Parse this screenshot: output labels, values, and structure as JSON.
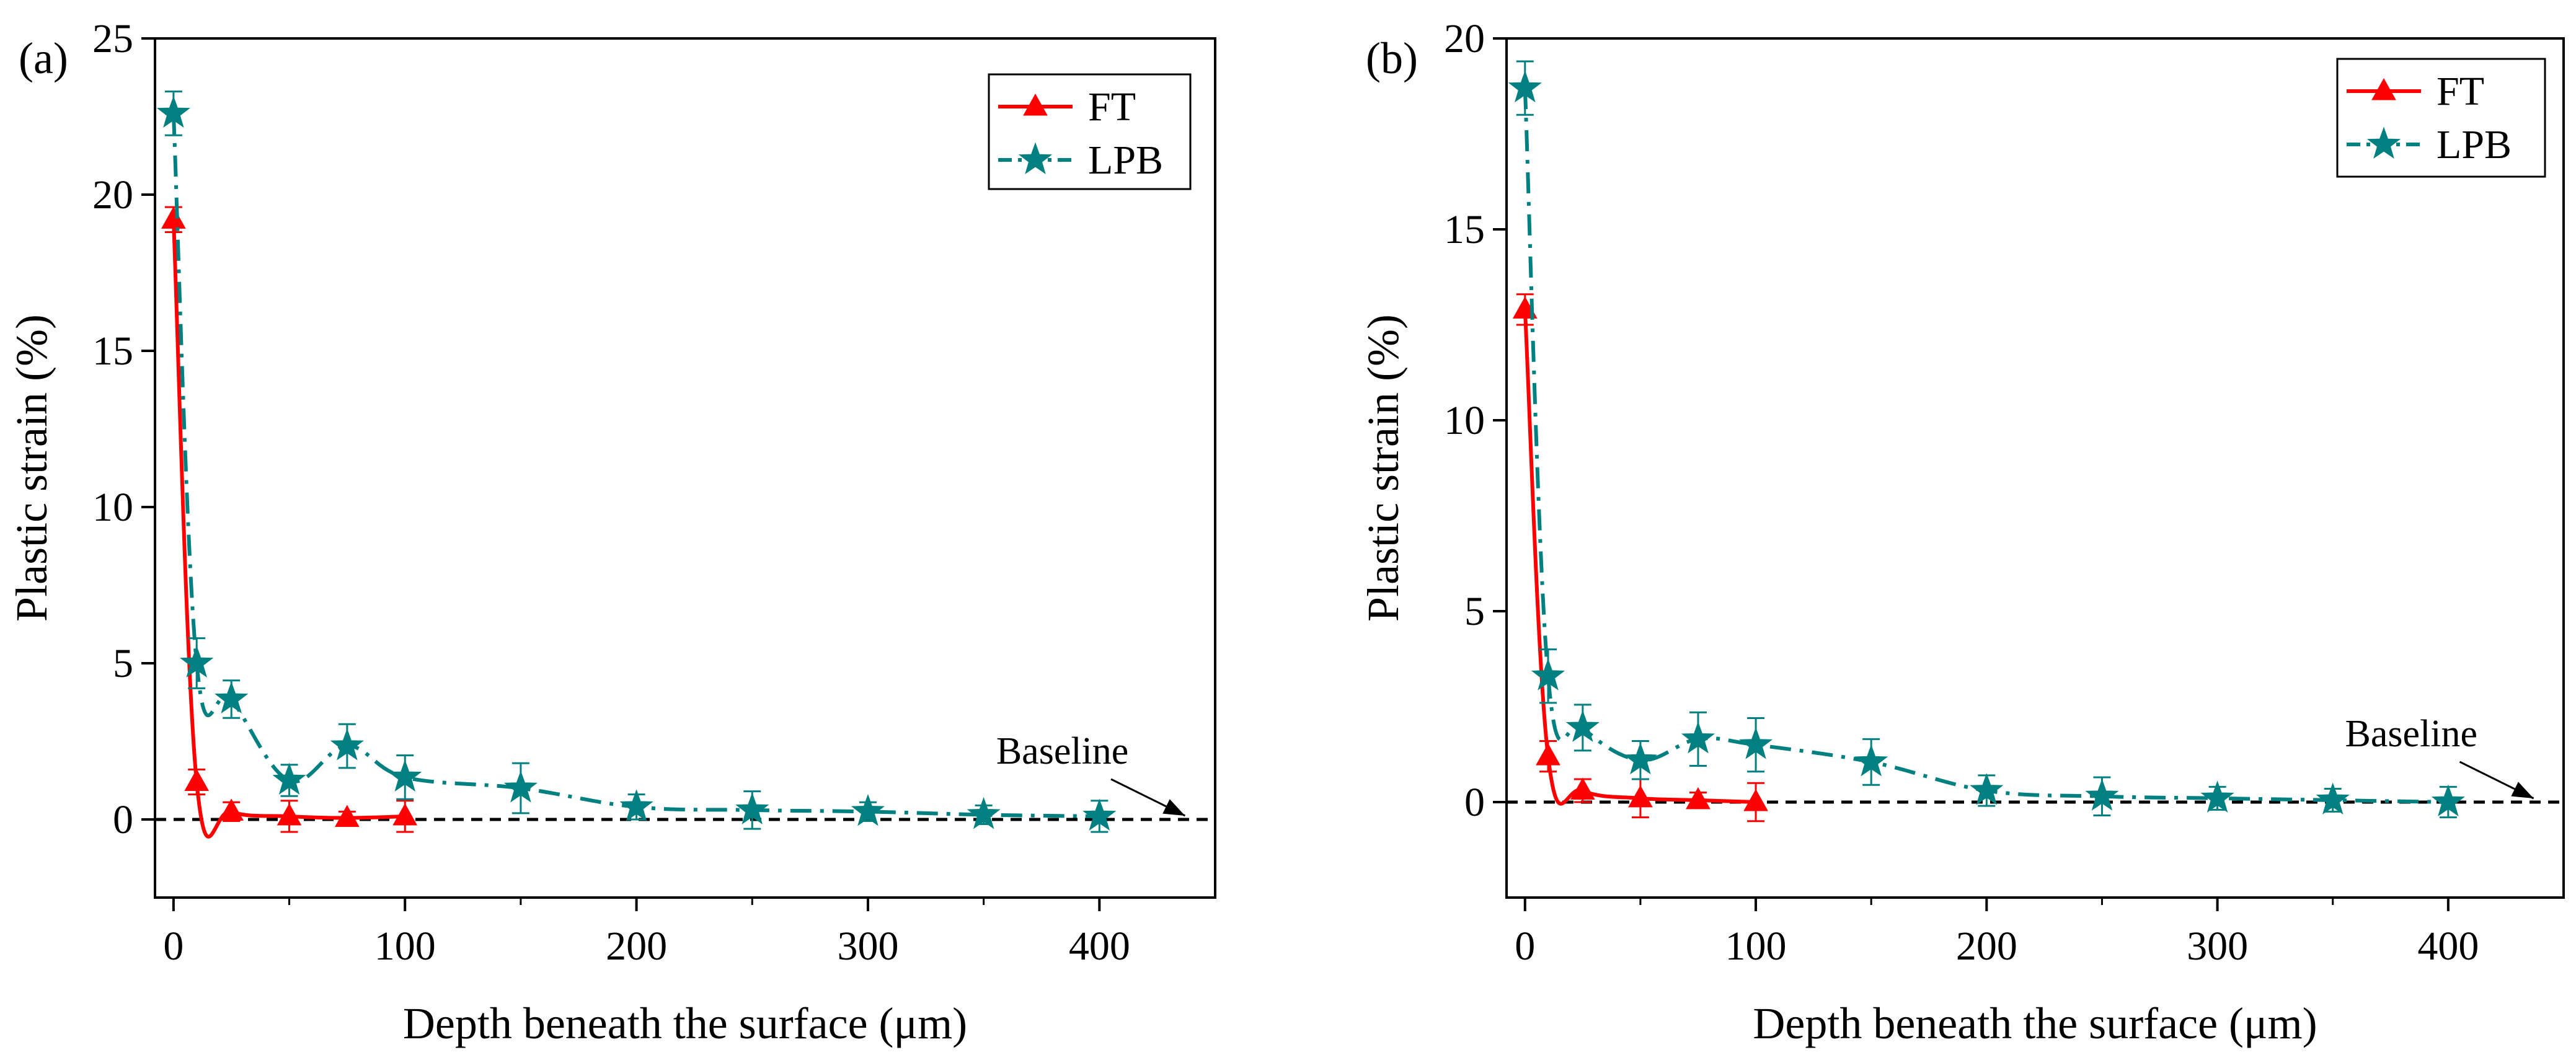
{
  "chart_data": [
    {
      "type": "line",
      "panel_label": "(a)",
      "xlabel": "Depth beneath the surface (μm)",
      "ylabel": "Plastic strain (%)",
      "xlim": [
        -8,
        450
      ],
      "ylim": [
        -2.5,
        25
      ],
      "xticks": [
        0,
        100,
        200,
        300,
        400
      ],
      "yticks": [
        0,
        5,
        10,
        15,
        20,
        25
      ],
      "grid": false,
      "legend_position": "top-right",
      "baseline": {
        "y": 0,
        "label": "Baseline"
      },
      "series": [
        {
          "name": "FT",
          "color": "#ff0000",
          "marker": "triangle",
          "line_style": "solid",
          "x": [
            0,
            10,
            25,
            50,
            75,
            100
          ],
          "y": [
            19.2,
            1.2,
            0.25,
            0.1,
            0.05,
            0.1
          ],
          "error": [
            0.4,
            0.4,
            0.3,
            0.5,
            0.2,
            0.5
          ]
        },
        {
          "name": "LPB",
          "color": "#008080",
          "marker": "star",
          "line_style": "dash-dot",
          "x": [
            0,
            10,
            25,
            50,
            75,
            100,
            150,
            200,
            250,
            300,
            350,
            400
          ],
          "y": [
            22.6,
            5.0,
            3.85,
            1.25,
            2.35,
            1.35,
            1.0,
            0.4,
            0.3,
            0.25,
            0.15,
            0.1
          ],
          "error": [
            0.7,
            0.8,
            0.6,
            0.5,
            0.7,
            0.7,
            0.8,
            0.4,
            0.6,
            0.3,
            0.3,
            0.5
          ]
        }
      ]
    },
    {
      "type": "line",
      "panel_label": "(b)",
      "xlabel": "Depth beneath the surface (μm)",
      "ylabel": "Plastic strain (%)",
      "xlim": [
        -8,
        450
      ],
      "ylim": [
        -2.5,
        20
      ],
      "xticks": [
        0,
        100,
        200,
        300,
        400
      ],
      "yticks": [
        0,
        5,
        10,
        15,
        20
      ],
      "grid": false,
      "legend_position": "top-right",
      "baseline": {
        "y": 0,
        "label": "Baseline"
      },
      "series": [
        {
          "name": "FT",
          "color": "#ff0000",
          "marker": "triangle",
          "line_style": "solid",
          "x": [
            0,
            10,
            25,
            50,
            75,
            100
          ],
          "y": [
            12.9,
            1.2,
            0.3,
            0.1,
            0.05,
            0.0
          ],
          "error": [
            0.4,
            0.4,
            0.3,
            0.5,
            0.2,
            0.5
          ]
        },
        {
          "name": "LPB",
          "color": "#008080",
          "marker": "star",
          "line_style": "dash-dot",
          "x": [
            0,
            10,
            25,
            50,
            75,
            100,
            150,
            200,
            250,
            300,
            350,
            400
          ],
          "y": [
            18.7,
            3.3,
            1.95,
            1.1,
            1.65,
            1.5,
            1.05,
            0.3,
            0.15,
            0.1,
            0.05,
            0.0
          ],
          "error": [
            0.7,
            0.7,
            0.6,
            0.5,
            0.7,
            0.7,
            0.6,
            0.4,
            0.5,
            0.3,
            0.3,
            0.4
          ]
        }
      ]
    }
  ]
}
